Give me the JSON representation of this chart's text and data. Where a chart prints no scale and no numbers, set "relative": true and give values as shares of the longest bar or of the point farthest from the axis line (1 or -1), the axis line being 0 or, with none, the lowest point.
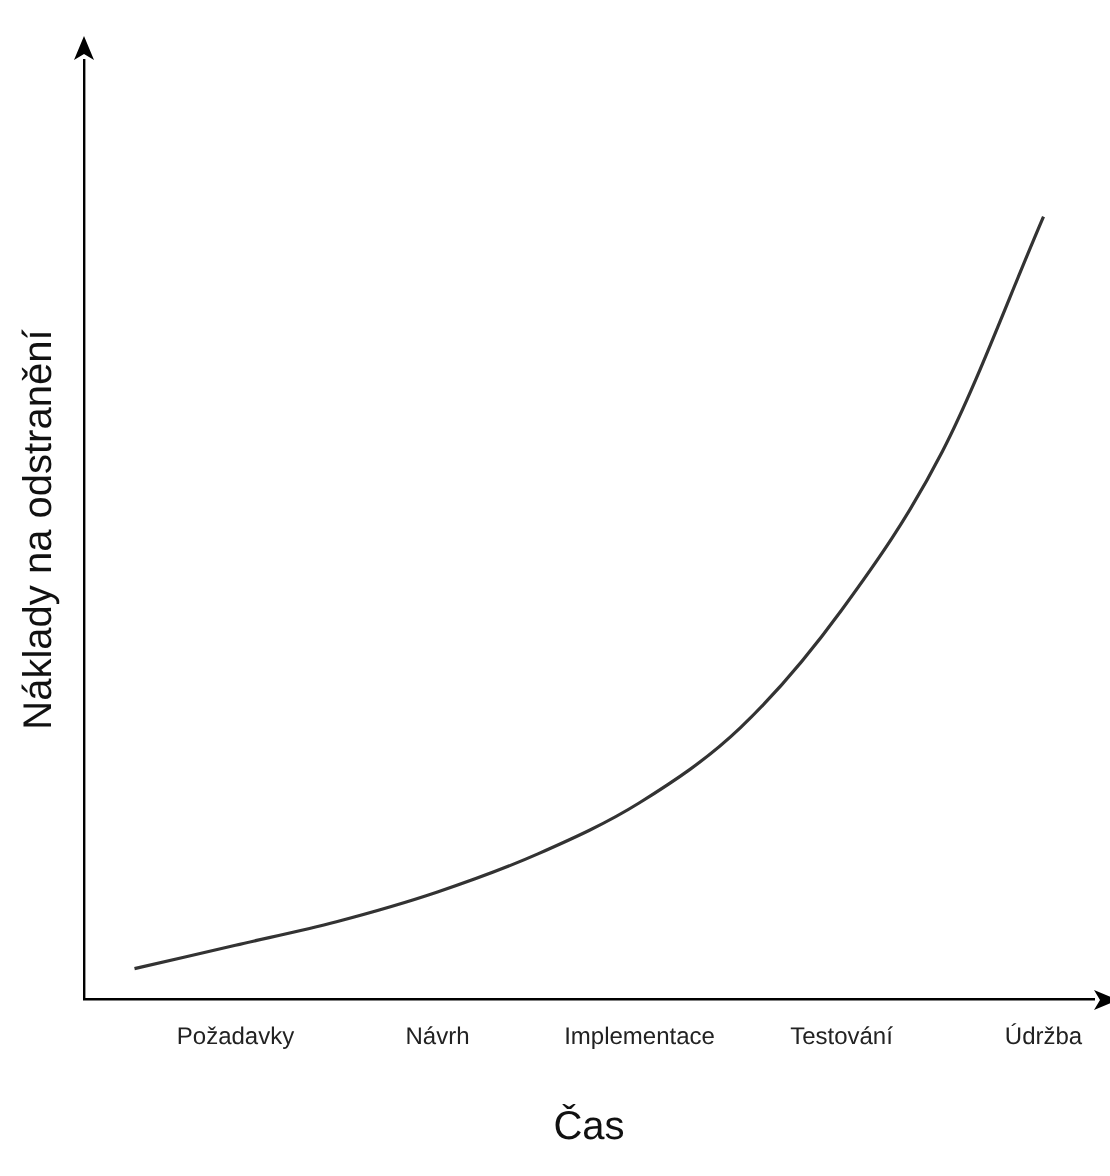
{
  "chart_data": {
    "type": "line",
    "relative": true,
    "xlabel": "Čas",
    "ylabel": "Náklady na odstranění",
    "categories": [
      null,
      "Požadavky",
      null,
      "Návrh",
      null,
      "Implementace",
      null,
      "Testování",
      null,
      "Údržba"
    ],
    "series": [
      {
        "color": "#333333",
        "values": [
          0.039,
          0.069,
          0.099,
          0.137,
          0.186,
          0.251,
          0.347,
          0.497,
          0.7,
          1.0
        ]
      }
    ],
    "marker": "none",
    "grid": false,
    "legend": false
  }
}
